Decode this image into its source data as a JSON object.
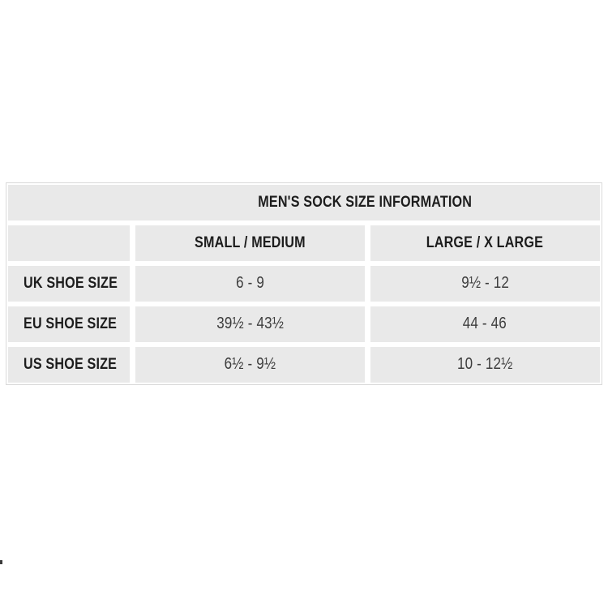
{
  "table": {
    "title": "MEN'S SOCK SIZE INFORMATION",
    "col_headers": [
      "SMALL / MEDIUM",
      "LARGE / X LARGE"
    ],
    "rows": [
      {
        "label": "UK SHOE SIZE",
        "values": [
          "6 - 9",
          "9½ - 12"
        ]
      },
      {
        "label": "EU SHOE SIZE",
        "values": [
          "39½ - 43½",
          "44 - 46"
        ]
      },
      {
        "label": "US SHOE SIZE",
        "values": [
          "6½ - 9½",
          "10 - 12½"
        ]
      }
    ]
  },
  "colors": {
    "cell_bg": "#e9e9e9",
    "gutter": "#ffffff",
    "outer_border": "#d9d9d9",
    "heading_text": "#1d1d1d",
    "value_text": "#3d3d3d"
  },
  "chart_data": {
    "type": "table",
    "title": "MEN'S SOCK SIZE INFORMATION",
    "columns": [
      "",
      "SMALL / MEDIUM",
      "LARGE / X LARGE"
    ],
    "rows": [
      [
        "UK SHOE SIZE",
        "6 - 9",
        "9½ - 12"
      ],
      [
        "EU SHOE SIZE",
        "39½ - 43½",
        "44 - 46"
      ],
      [
        "US SHOE SIZE",
        "6½ - 9½",
        "10 - 12½"
      ]
    ]
  }
}
